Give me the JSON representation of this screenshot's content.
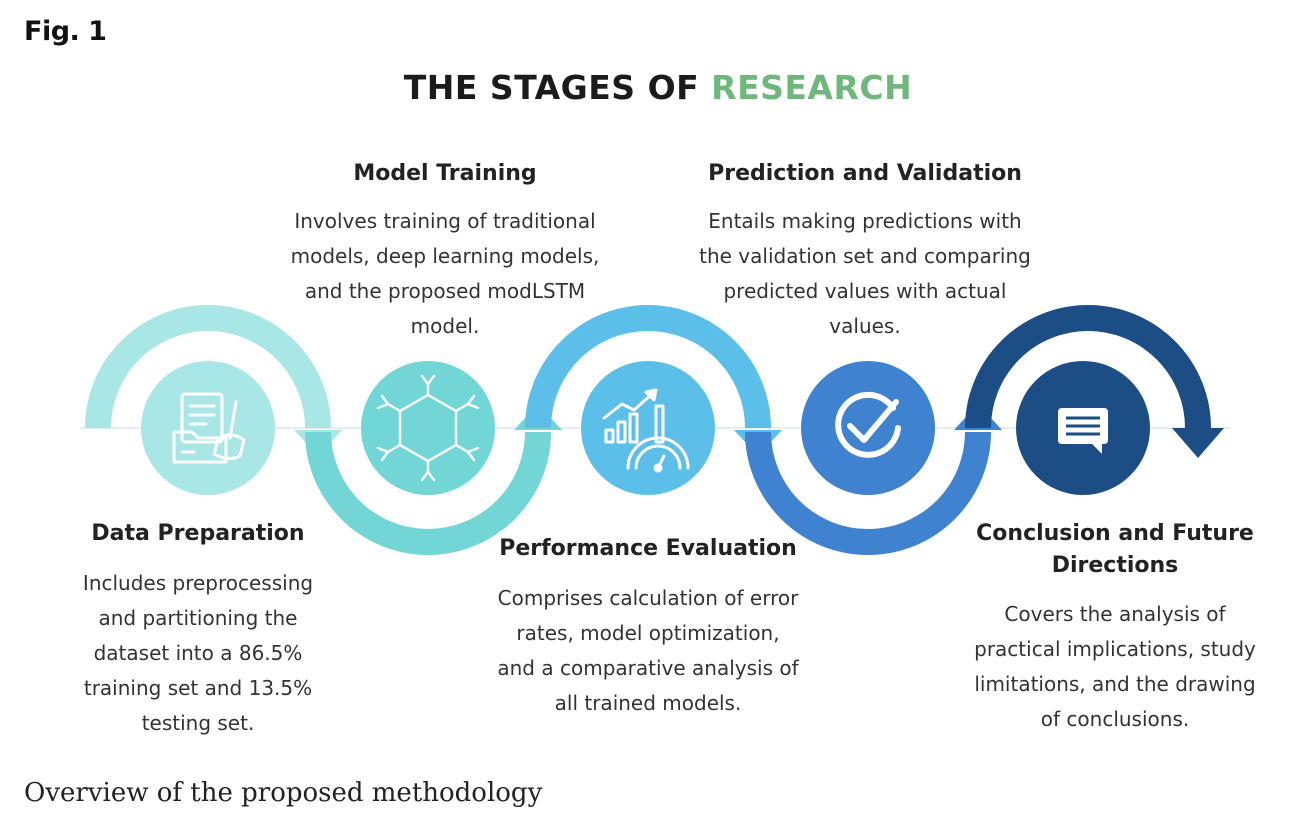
{
  "figure": {
    "label": "Fig. 1",
    "title_main": "THE STAGES OF ",
    "title_accent": "RESEARCH",
    "caption": "Overview of the proposed methodology"
  },
  "colors": {
    "stage1": "#a9e6e6",
    "stage2": "#72d6d6",
    "stage3": "#5bbfe9",
    "stage4": "#3f82cf",
    "stage5": "#1d4d85",
    "accent": "#6fb77d"
  },
  "stages": [
    {
      "heading": "Data Preparation",
      "lines": [
        "Includes preprocessing",
        "and partitioning the",
        "dataset into a 86.5%",
        "training set and 13.5%",
        "testing set."
      ],
      "icon": "document-folder-broom-icon"
    },
    {
      "heading": "Model Training",
      "lines": [
        "Involves training of traditional",
        "models, deep learning models,",
        "and the proposed modLSTM",
        "model."
      ],
      "icon": "neural-hexagon-icon"
    },
    {
      "heading": "Performance Evaluation",
      "lines": [
        "Comprises calculation of error",
        "rates, model optimization,",
        "and a comparative analysis of",
        "all trained models."
      ],
      "icon": "chart-gauge-icon"
    },
    {
      "heading": "Prediction and Validation",
      "lines": [
        "Entails making predictions with",
        "the validation set and comparing",
        "predicted values with actual",
        "values."
      ],
      "icon": "checkmark-circle-icon"
    },
    {
      "heading_lines": [
        "Conclusion and Future",
        "Directions"
      ],
      "lines": [
        "Covers the analysis of",
        "practical implications, study",
        "limitations, and the drawing",
        "of conclusions."
      ],
      "icon": "speech-bubble-icon"
    }
  ]
}
